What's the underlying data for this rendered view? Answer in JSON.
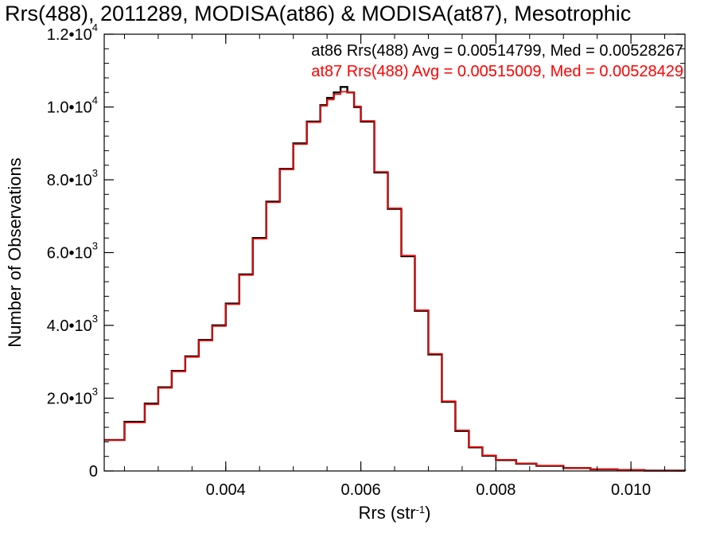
{
  "chart_data": {
    "type": "line",
    "title": "Rrs(488), 2011289, MODISA(at86) & MODISA(at87), Mesotrophic",
    "xlabel": "Rrs (str",
    "xlabel_sup": "-1",
    "xlabel_close": ")",
    "ylabel": "Number of Observations",
    "xlim": [
      0.0022,
      0.0108
    ],
    "ylim": [
      0,
      12000
    ],
    "grid": false,
    "step": true,
    "x_ticks": [
      {
        "value": 0.004,
        "label": "0.004"
      },
      {
        "value": 0.006,
        "label": "0.006"
      },
      {
        "value": 0.008,
        "label": "0.008"
      },
      {
        "value": 0.01,
        "label": "0.010"
      }
    ],
    "y_ticks": [
      {
        "value": 0,
        "mant": "0",
        "exp": ""
      },
      {
        "value": 2000,
        "mant": "2.0•10",
        "exp": "3"
      },
      {
        "value": 4000,
        "mant": "4.0•10",
        "exp": "3"
      },
      {
        "value": 6000,
        "mant": "6.0•10",
        "exp": "3"
      },
      {
        "value": 8000,
        "mant": "8.0•10",
        "exp": "3"
      },
      {
        "value": 10000,
        "mant": "1.0•10",
        "exp": "4"
      },
      {
        "value": 12000,
        "mant": "1.2•10",
        "exp": "4"
      }
    ],
    "x_minor_step": 0.0005,
    "y_minor_step": 400,
    "annotations": [
      {
        "text": "at86 Rrs(488) Avg = 0.00514799, Med = 0.00528267",
        "color": "#000000"
      },
      {
        "text": "at87 Rrs(488) Avg = 0.00515009, Med = 0.00528429",
        "color": "#ff0000"
      }
    ],
    "series": [
      {
        "color": "#000000",
        "x": [
          0.0022,
          0.0025,
          0.0028,
          0.003,
          0.0032,
          0.0034,
          0.0036,
          0.0038,
          0.004,
          0.0042,
          0.0044,
          0.0046,
          0.0048,
          0.005,
          0.0052,
          0.0054,
          0.0055,
          0.0056,
          0.0057,
          0.0058,
          0.0059,
          0.006,
          0.0062,
          0.0064,
          0.0066,
          0.0068,
          0.007,
          0.0072,
          0.0074,
          0.0076,
          0.0078,
          0.008,
          0.0083,
          0.0086,
          0.009,
          0.0094,
          0.0098,
          0.0102,
          0.0108
        ],
        "y": [
          850,
          1350,
          1850,
          2300,
          2750,
          3150,
          3600,
          4000,
          4600,
          5400,
          6400,
          7400,
          8300,
          9000,
          9600,
          10050,
          10250,
          10400,
          10550,
          10400,
          10000,
          9600,
          8200,
          7200,
          5900,
          4400,
          3200,
          1900,
          1100,
          650,
          420,
          300,
          200,
          140,
          80,
          45,
          25,
          10,
          5
        ]
      },
      {
        "color": "#ff0000",
        "x": [
          0.0022,
          0.0025,
          0.0028,
          0.003,
          0.0032,
          0.0034,
          0.0036,
          0.0038,
          0.004,
          0.0042,
          0.0044,
          0.0046,
          0.0048,
          0.005,
          0.0052,
          0.0054,
          0.0055,
          0.0056,
          0.0057,
          0.0058,
          0.0059,
          0.006,
          0.0062,
          0.0064,
          0.0066,
          0.0068,
          0.007,
          0.0072,
          0.0074,
          0.0076,
          0.0078,
          0.008,
          0.0083,
          0.0086,
          0.009,
          0.0094,
          0.0098,
          0.0102,
          0.0108
        ],
        "y": [
          850,
          1330,
          1830,
          2280,
          2730,
          3130,
          3580,
          3980,
          4580,
          5380,
          6380,
          7380,
          8280,
          8980,
          9580,
          10030,
          10200,
          10350,
          10420,
          10400,
          10020,
          9620,
          8220,
          7220,
          5920,
          4420,
          3220,
          1920,
          1120,
          660,
          430,
          310,
          205,
          145,
          82,
          46,
          26,
          10,
          5
        ]
      }
    ]
  }
}
